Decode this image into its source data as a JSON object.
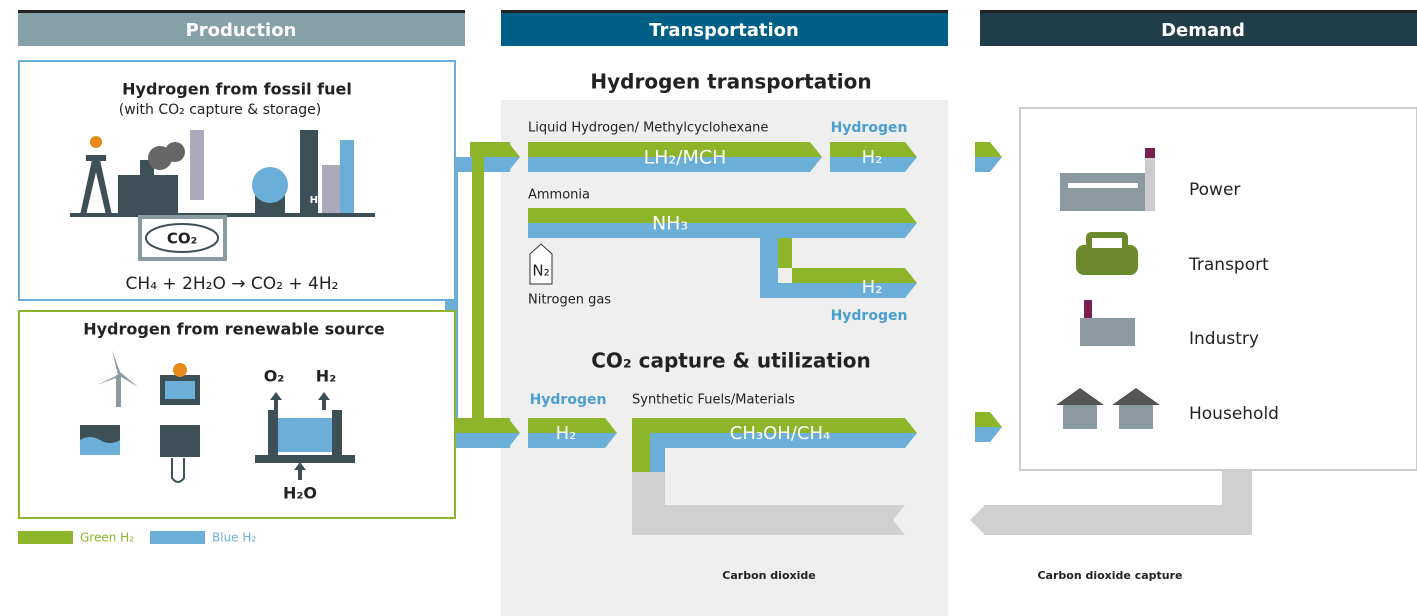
{
  "headers": {
    "production": "Production",
    "transportation": "Transportation",
    "demand": "Demand"
  },
  "production": {
    "fossil": {
      "title": "Hydrogen from fossil fuel",
      "subtitle": "(with CO₂ capture & storage)",
      "storage_label": "CO₂",
      "equation": "CH₄ + 2H₂O → CO₂ + 4H₂",
      "tank_label": "H₂"
    },
    "renewable": {
      "title": "Hydrogen from renewable source",
      "oxygen": "O₂",
      "hydrogen": "H₂",
      "water": "H₂O"
    },
    "legend": {
      "green": "Green H₂",
      "blue": "Blue H₂"
    }
  },
  "transportation": {
    "title": "Hydrogen transportation",
    "lh2": {
      "caption": "Liquid Hydrogen/ Methylcyclohexane",
      "carrier": "LH₂/MCH",
      "output_caption": "Hydrogen",
      "output": "H₂"
    },
    "ammonia": {
      "caption": "Ammonia",
      "carrier": "NH₃",
      "nitrogen_symbol": "N₂",
      "nitrogen_caption": "Nitrogen gas",
      "output": "H₂",
      "output_caption": "Hydrogen"
    },
    "ccu_title": "CO₂ capture & utilization",
    "ccu": {
      "input_caption": "Hydrogen",
      "input": "H₂",
      "caption": "Synthetic Fuels/Materials",
      "product": "CH₃OH/CH₄",
      "return_caption": "Carbon dioxide"
    }
  },
  "demand": {
    "items": [
      "Power",
      "Transport",
      "Industry",
      "Household"
    ],
    "capture_caption": "Carbon dioxide capture"
  }
}
